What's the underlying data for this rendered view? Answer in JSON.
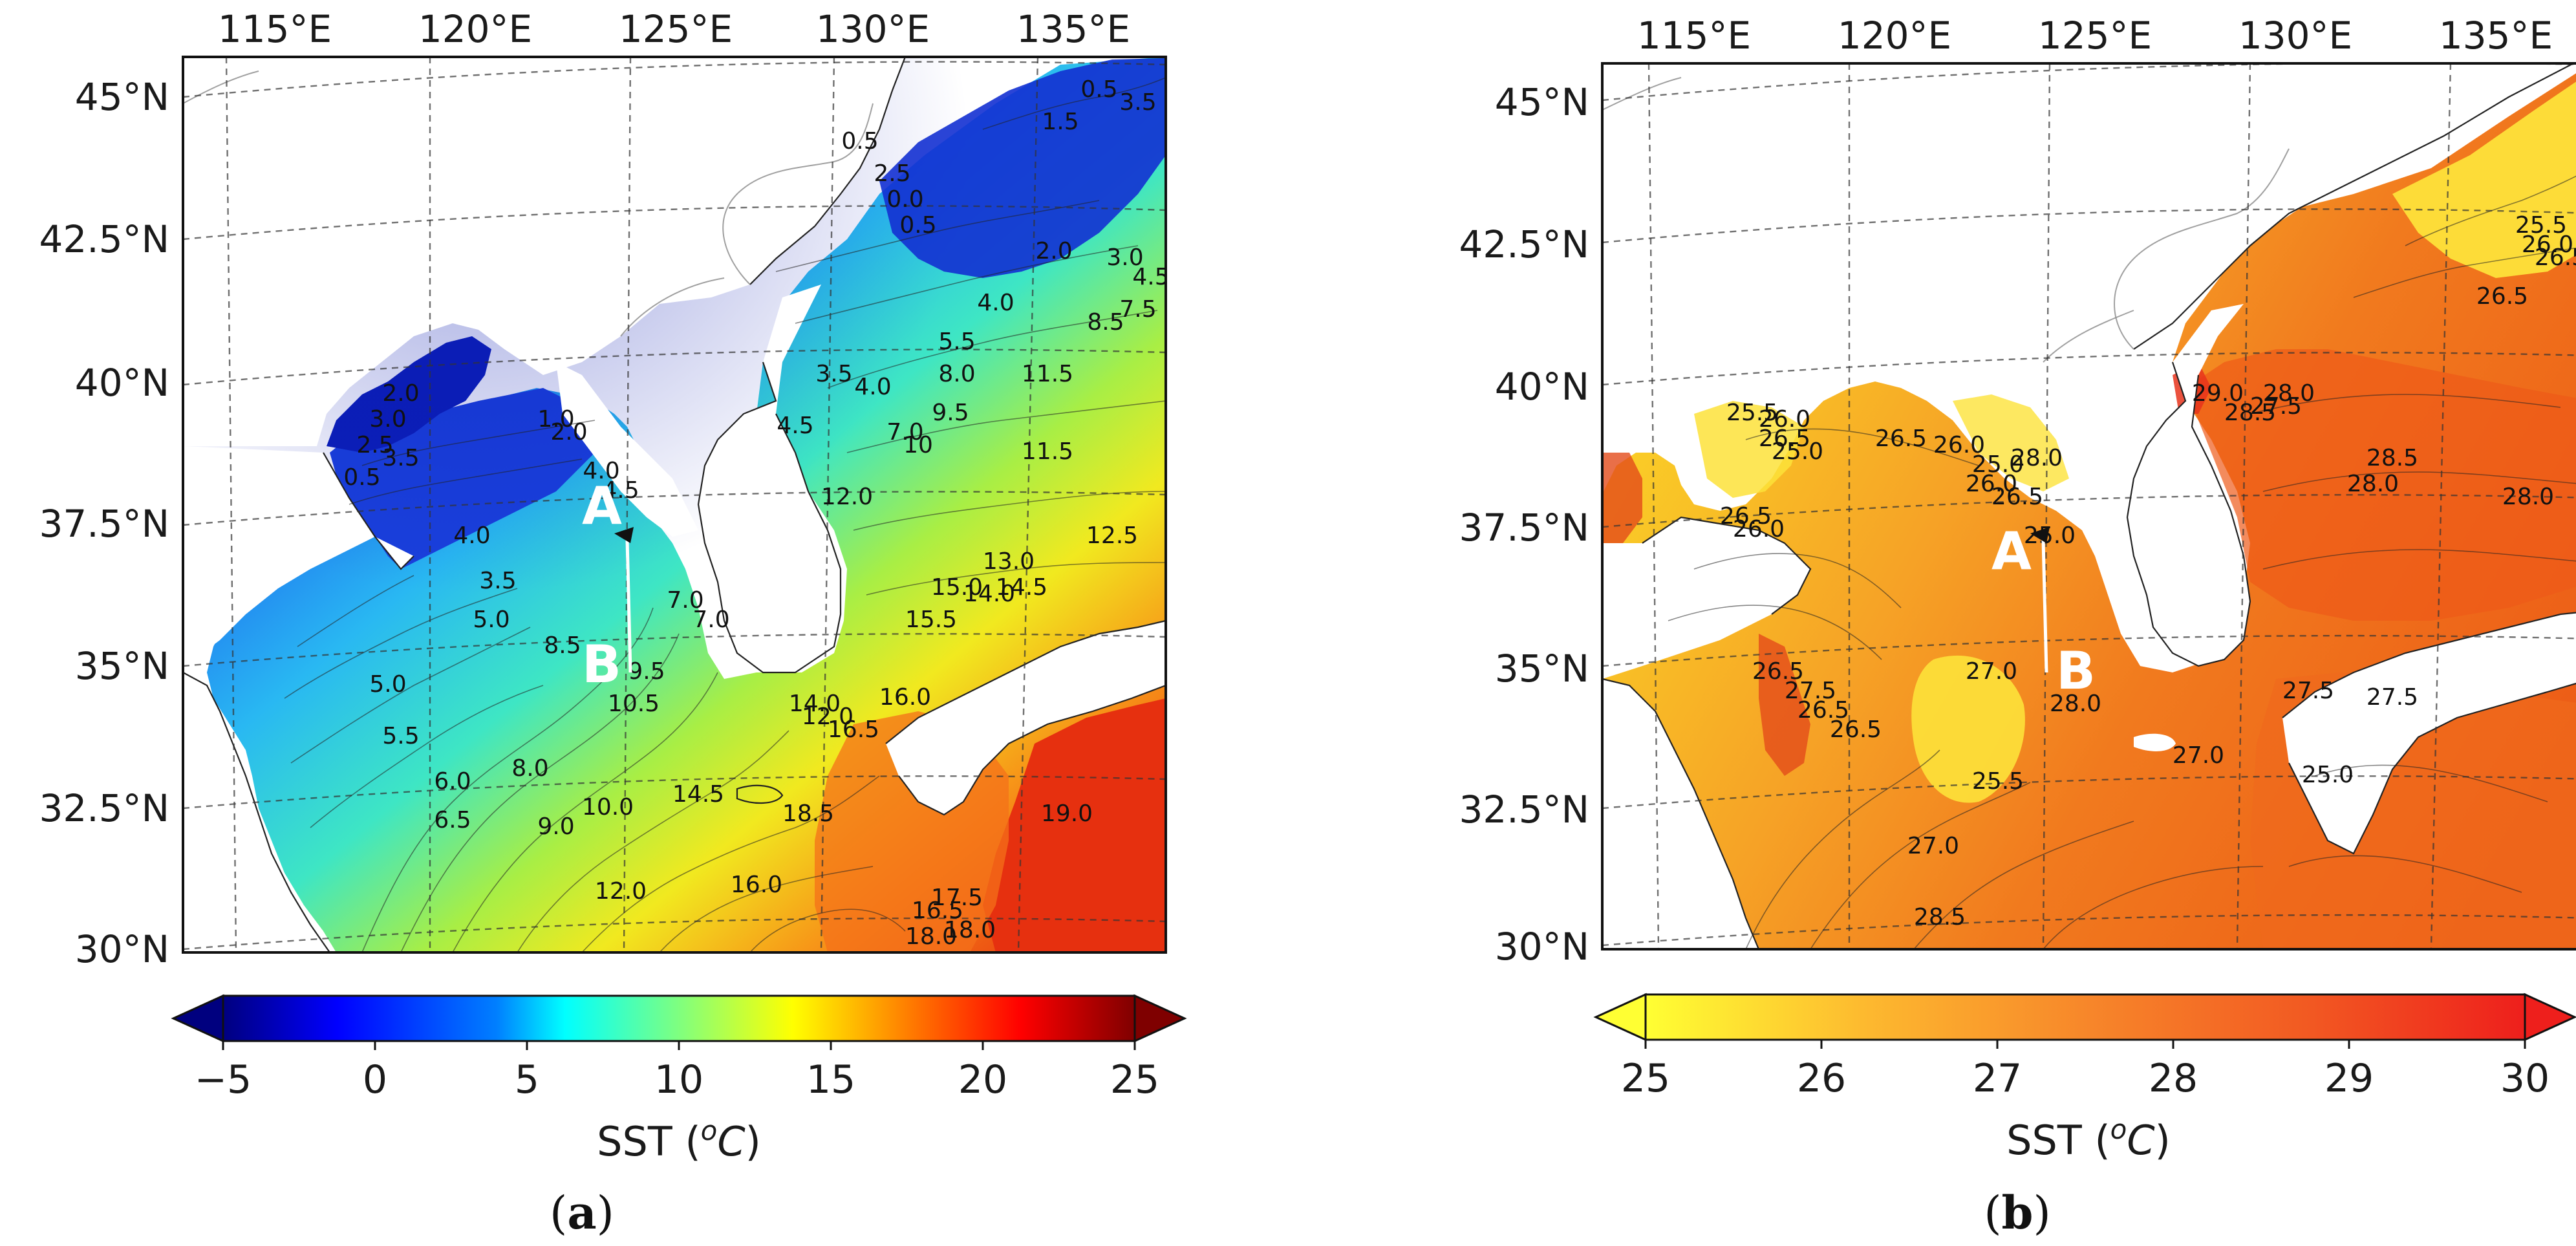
{
  "panels": [
    {
      "id": "a",
      "caption_letter": "a",
      "lon_ticks": [
        "115°E",
        "120°E",
        "125°E",
        "130°E",
        "135°E"
      ],
      "lat_ticks": [
        "45°N",
        "42.5°N",
        "40°N",
        "37.5°N",
        "35°N",
        "32.5°N",
        "30°N"
      ],
      "section_labels": {
        "start": "A",
        "end": "B"
      },
      "colorbar": {
        "ticks": [
          "−5",
          "0",
          "5",
          "10",
          "15",
          "20",
          "25"
        ],
        "range": [
          -5,
          25
        ],
        "colormap": "jet",
        "extend": "both",
        "label_prefix": "SST (",
        "label_sup": "o",
        "label_unit": "C",
        "label_suffix": ")"
      },
      "contour_labels": [
        "0.5",
        "1.5",
        "3.5",
        "0.0",
        "0.5",
        "2.0",
        "3.0",
        "4.5",
        "4.0",
        "5.5",
        "8.0",
        "8.5",
        "7.5",
        "11.5",
        "3.5",
        "4.0",
        "7.0",
        "9.5",
        "10",
        "4.5",
        "12.0",
        "11.5",
        "12.5",
        "13.0",
        "14.5",
        "14.0",
        "15.5",
        "15.0",
        "16.0",
        "14.0",
        "12.0",
        "16.5",
        "0.5",
        "2.5",
        "2.0",
        "3.0",
        "2.5",
        "3.5",
        "1.0",
        "2.0",
        "4.0",
        "4.5",
        "0.5",
        "4.0",
        "7.0",
        "3.5",
        "5.0",
        "8.5",
        "9.5",
        "10.5",
        "7.0",
        "5.0",
        "5.5",
        "6.0",
        "6.5",
        "8.0",
        "9.0",
        "10.0",
        "14.5",
        "12.0",
        "16.0",
        "18.5",
        "19.0",
        "17.5",
        "16.5",
        "18.0",
        "18.0"
      ]
    },
    {
      "id": "b",
      "caption_letter": "b",
      "lon_ticks": [
        "115°E",
        "120°E",
        "125°E",
        "130°E",
        "135°E"
      ],
      "lat_ticks": [
        "45°N",
        "42.5°N",
        "40°N",
        "37.5°N",
        "35°N",
        "32.5°N",
        "30°N"
      ],
      "section_labels": {
        "start": "A",
        "end": "B"
      },
      "colorbar": {
        "ticks": [
          "25",
          "26",
          "27",
          "28",
          "29",
          "30"
        ],
        "range": [
          25,
          30
        ],
        "colormap": "yellow-orange-red",
        "extend": "both",
        "label_prefix": "SST (",
        "label_sup": "o",
        "label_unit": "C",
        "label_suffix": ")"
      },
      "contour_labels": [
        "25.5",
        "26.0",
        "26.5",
        "26.5",
        "27.5",
        "29.0",
        "28.0",
        "28.5",
        "28.5",
        "28.0",
        "28.0",
        "25.5",
        "26.0",
        "26.5",
        "25.0",
        "26.5",
        "26.0",
        "25.0",
        "28.0",
        "26.0",
        "26.5",
        "26.5",
        "26.0",
        "25.0",
        "26.5",
        "27.5",
        "26.5",
        "26.5",
        "27.0",
        "28.0",
        "27.5",
        "27.5",
        "25.0",
        "27.0",
        "25.5",
        "27.0",
        "28.5"
      ]
    }
  ]
}
